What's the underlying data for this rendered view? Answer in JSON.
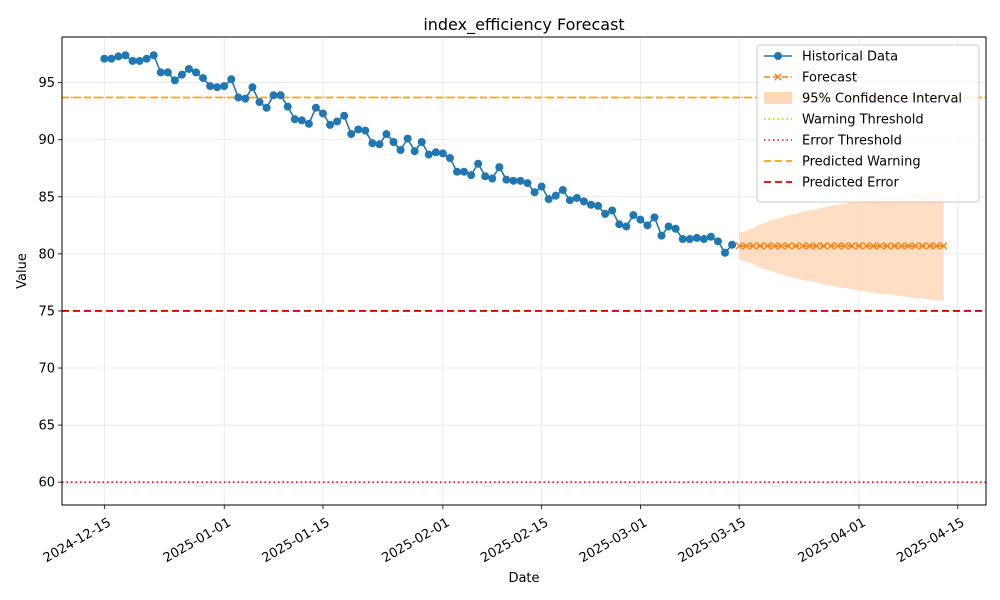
{
  "chart_data": {
    "type": "line",
    "title": "index_efficiency Forecast",
    "xlabel": "Date",
    "ylabel": "Value",
    "xlim": [
      "2024-12-09",
      "2025-04-19"
    ],
    "ylim": [
      58,
      99
    ],
    "y_ticks": [
      60,
      65,
      70,
      75,
      80,
      85,
      90,
      95
    ],
    "x_ticks": [
      "2024-12-15",
      "2025-01-01",
      "2025-01-15",
      "2025-02-01",
      "2025-02-15",
      "2025-03-01",
      "2025-03-15",
      "2025-04-01",
      "2025-04-15"
    ],
    "grid": true,
    "legend_position": "top-right",
    "colors": {
      "historical": "#1f77b4",
      "forecast": "#ff7f0e",
      "confidence": "#ffd8b8",
      "warning": "#ffa500",
      "error": "#ff0000",
      "predicted_warning": "#ffa500",
      "predicted_error": "#dd0000"
    },
    "series": [
      {
        "name": "Historical Data",
        "start_date": "2024-12-15",
        "step_days": 1,
        "values": [
          97.1,
          97.1,
          97.3,
          97.4,
          96.9,
          96.9,
          97.1,
          97.4,
          95.9,
          95.9,
          95.2,
          95.7,
          96.2,
          95.9,
          95.4,
          94.7,
          94.6,
          94.7,
          95.3,
          93.7,
          93.6,
          94.6,
          93.3,
          92.8,
          93.9,
          93.9,
          92.9,
          91.8,
          91.7,
          91.4,
          92.8,
          92.3,
          91.3,
          91.6,
          92.1,
          90.5,
          90.9,
          90.8,
          89.7,
          89.6,
          90.5,
          89.8,
          89.1,
          90.1,
          89.0,
          89.8,
          88.7,
          88.9,
          88.8,
          88.4,
          87.2,
          87.2,
          86.9,
          87.9,
          86.8,
          86.6,
          87.6,
          86.5,
          86.4,
          86.4,
          86.2,
          85.4,
          85.9,
          84.8,
          85.1,
          85.6,
          84.7,
          84.9,
          84.6,
          84.3,
          84.2,
          83.5,
          83.8,
          82.6,
          82.4,
          83.4,
          83.0,
          82.5,
          83.2,
          81.6,
          82.4,
          82.2,
          81.3,
          81.3,
          81.4,
          81.3,
          81.5,
          81.1,
          80.1,
          80.8
        ]
      },
      {
        "name": "Forecast",
        "start_date": "2025-03-15",
        "step_days": 1,
        "values": [
          80.7,
          80.7,
          80.7,
          80.7,
          80.7,
          80.7,
          80.7,
          80.7,
          80.7,
          80.7,
          80.7,
          80.7,
          80.7,
          80.7,
          80.7,
          80.7,
          80.7,
          80.7,
          80.7,
          80.7,
          80.7,
          80.7,
          80.7,
          80.7,
          80.7,
          80.7,
          80.7,
          80.7,
          80.7,
          80.7
        ]
      }
    ],
    "confidence_interval": {
      "name": "95% Confidence Interval",
      "upper": [
        81.9,
        82.0,
        82.3,
        82.6,
        82.8,
        83.0,
        83.2,
        83.4,
        83.5,
        83.7,
        83.8,
        83.9,
        84.1,
        84.2,
        84.3,
        84.4,
        84.5,
        84.6,
        84.7,
        84.8,
        84.9,
        84.9,
        85.0,
        85.1,
        85.2,
        85.3,
        85.3,
        85.4,
        85.5,
        85.5
      ],
      "lower": [
        79.5,
        79.3,
        79.1,
        78.8,
        78.6,
        78.4,
        78.2,
        78.0,
        77.9,
        77.7,
        77.6,
        77.5,
        77.3,
        77.2,
        77.1,
        77.0,
        76.9,
        76.8,
        76.7,
        76.6,
        76.5,
        76.5,
        76.4,
        76.3,
        76.2,
        76.1,
        76.1,
        76.0,
        75.9,
        75.9
      ]
    },
    "thresholds": [
      {
        "name": "Warning Threshold",
        "value": 93.7,
        "style": "dotted",
        "color_key": "warning"
      },
      {
        "name": "Error Threshold",
        "value": 60.0,
        "style": "dotted",
        "color_key": "error"
      },
      {
        "name": "Predicted Warning",
        "value": 93.7,
        "style": "dashed",
        "color_key": "predicted_warning"
      },
      {
        "name": "Predicted Error",
        "value": 75.0,
        "style": "dashed",
        "color_key": "predicted_error"
      }
    ]
  }
}
